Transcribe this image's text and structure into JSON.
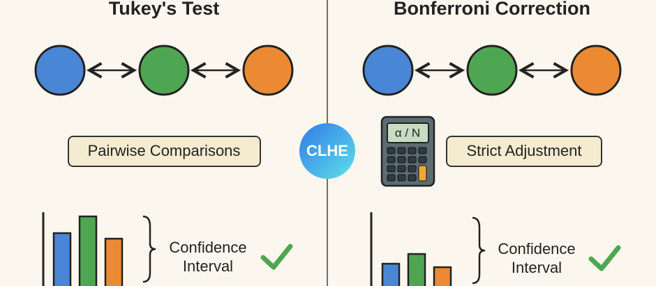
{
  "left": {
    "title": "Tukey's Test",
    "label": "Pairwise Comparisons",
    "note": [
      "Confidence",
      "Interval"
    ]
  },
  "right": {
    "title": "Bonferroni Correction",
    "calculator_display": "α / N",
    "label": "Strict Adjustment",
    "note": [
      "Confidence",
      "Interval"
    ]
  },
  "logo": "CLHE"
}
